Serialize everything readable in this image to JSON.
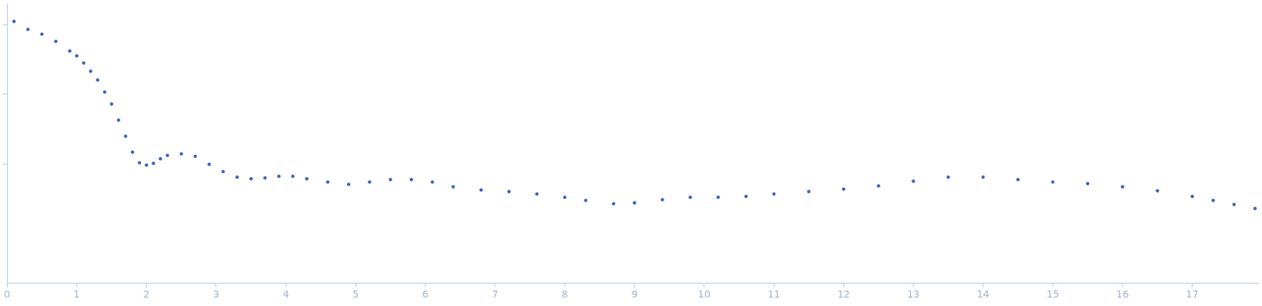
{
  "chart_data": {
    "type": "scatter",
    "log": "y",
    "grid": false,
    "tick_labels": "x",
    "marker": "circle",
    "color": "#3a66b8",
    "x": [
      0.1,
      0.3,
      0.5,
      0.7,
      0.9,
      1.0,
      1.1,
      1.2,
      1.3,
      1.4,
      1.5,
      1.6,
      1.7,
      1.8,
      1.9,
      2.0,
      2.1,
      2.2,
      2.3,
      2.5,
      2.7,
      2.9,
      3.1,
      3.3,
      3.5,
      3.7,
      3.9,
      4.1,
      4.3,
      4.6,
      4.9,
      5.2,
      5.5,
      5.8,
      6.1,
      6.4,
      6.8,
      7.2,
      7.6,
      8.0,
      8.3,
      8.7,
      9.0,
      9.4,
      9.8,
      10.2,
      10.6,
      11.0,
      11.5,
      12.0,
      12.5,
      13.0,
      13.5,
      14.0,
      14.5,
      15.0,
      15.5,
      16.0,
      16.5,
      17.0,
      17.3,
      17.6,
      17.9
    ],
    "values": [
      1.11,
      0.853,
      0.728,
      0.574,
      0.418,
      0.356,
      0.281,
      0.215,
      0.161,
      0.108,
      0.0728,
      0.0429,
      0.0252,
      0.0149,
      0.0105,
      0.00975,
      0.0103,
      0.012,
      0.0134,
      0.0141,
      0.013,
      0.01,
      0.00788,
      0.00655,
      0.00621,
      0.00638,
      0.00673,
      0.00673,
      0.00621,
      0.00558,
      0.00516,
      0.00558,
      0.00605,
      0.00605,
      0.00558,
      0.00477,
      0.00429,
      0.00407,
      0.00376,
      0.00338,
      0.00304,
      0.00273,
      0.00281,
      0.00312,
      0.00338,
      0.00338,
      0.00347,
      0.00376,
      0.00407,
      0.00441,
      0.0049,
      0.00574,
      0.00655,
      0.00655,
      0.00605,
      0.00558,
      0.0053,
      0.00477,
      0.00418,
      0.00347,
      0.00304,
      0.00266,
      0.00233
    ],
    "xlim": [
      0,
      17.95
    ],
    "xticks": [
      0,
      1,
      2,
      3,
      4,
      5,
      6,
      7,
      8,
      9,
      10,
      11,
      12,
      13,
      14,
      15,
      16,
      17
    ],
    "ylim": [
      0.0002,
      2
    ],
    "yticks": [
      0.01,
      0.1,
      1
    ]
  }
}
